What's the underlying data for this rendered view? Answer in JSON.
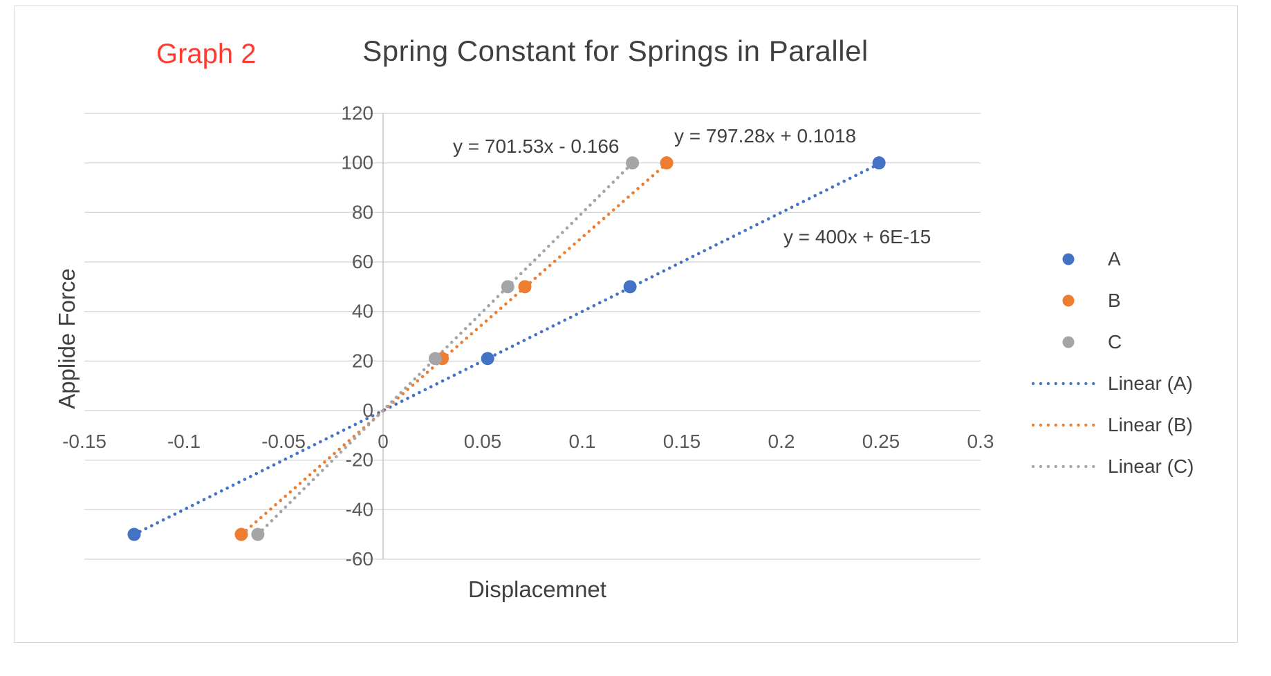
{
  "chart_data": {
    "type": "scatter",
    "graph_label": "Graph 2",
    "title": "Spring Constant for Springs in Parallel",
    "xlabel": "Displacemnet",
    "ylabel": "Applide Force",
    "xlim": [
      -0.15,
      0.3
    ],
    "ylim": [
      -60,
      120
    ],
    "xticks": [
      "-0.15",
      "-0.1",
      "-0.05",
      "0",
      "0.05",
      "0.1",
      "0.15",
      "0.2",
      "0.25",
      "0.3"
    ],
    "yticks": [
      "-60",
      "-40",
      "-20",
      "0",
      "20",
      "40",
      "60",
      "80",
      "100",
      "120"
    ],
    "grid": "horizontal",
    "legend_position": "right",
    "series": [
      {
        "name": "A",
        "color": "#4472C4",
        "points": [
          [
            -0.125,
            -50
          ],
          [
            0.0525,
            21
          ],
          [
            0.124,
            50
          ],
          [
            0.249,
            100
          ]
        ],
        "trend": {
          "slope": 400,
          "intercept": 6e-15,
          "equation": "y = 400x + 6E-15"
        }
      },
      {
        "name": "B",
        "color": "#ED7D31",
        "points": [
          [
            -0.0712,
            -50
          ],
          [
            0.0297,
            21
          ],
          [
            0.0712,
            50
          ],
          [
            0.1424,
            100
          ]
        ],
        "trend": {
          "slope": 701.53,
          "intercept": -0.166,
          "equation": "y = 701.53x - 0.166"
        }
      },
      {
        "name": "C",
        "color": "#A5A5A5",
        "points": [
          [
            -0.0629,
            -50
          ],
          [
            0.0262,
            21
          ],
          [
            0.0626,
            50
          ],
          [
            0.1252,
            100
          ]
        ],
        "trend": {
          "slope": 797.28,
          "intercept": 0.1018,
          "equation": "y = 797.28x + 0.1018"
        }
      }
    ],
    "legend": [
      {
        "label": "A",
        "series": "A",
        "kind": "point"
      },
      {
        "label": "B",
        "series": "B",
        "kind": "point"
      },
      {
        "label": "C",
        "series": "C",
        "kind": "point"
      },
      {
        "label": "Linear (A)",
        "series": "A",
        "kind": "line"
      },
      {
        "label": "Linear (B)",
        "series": "B",
        "kind": "line"
      },
      {
        "label": "Linear (C)",
        "series": "C",
        "kind": "line"
      }
    ],
    "colors": {
      "graph_label": "#FF3B30",
      "title_text": "#404040",
      "tick_label": "#595959",
      "gridline": "#D9D9D9",
      "axis_line": "#BFBFBF"
    }
  }
}
